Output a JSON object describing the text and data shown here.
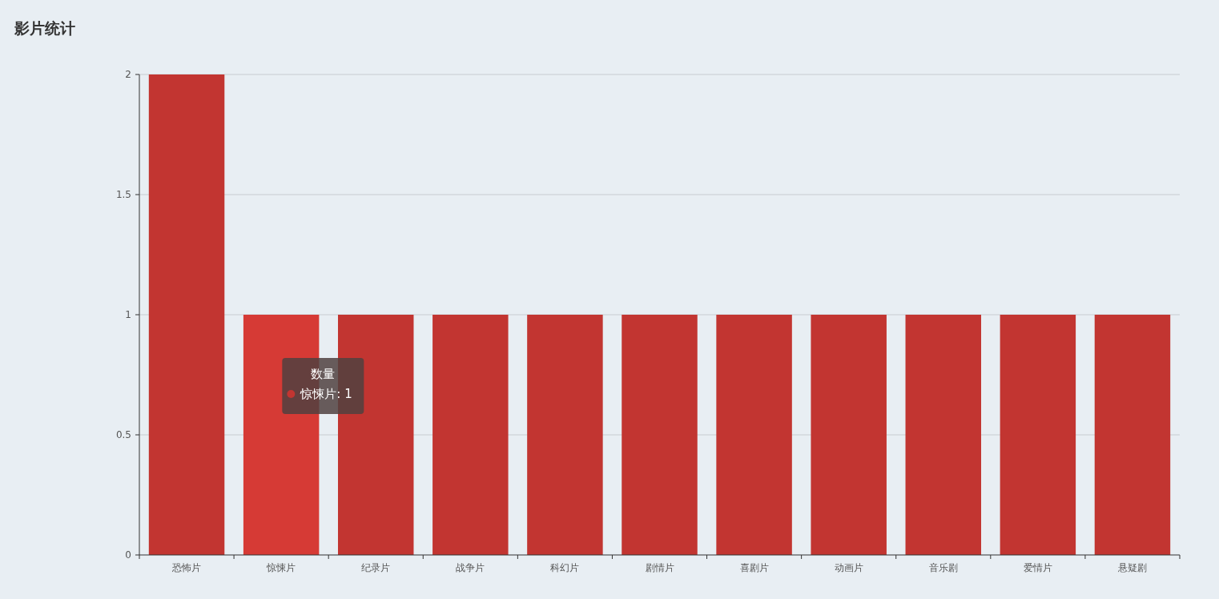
{
  "chart_data": {
    "type": "bar",
    "title": "影片统计",
    "categories": [
      "恐怖片",
      "惊悚片",
      "纪录片",
      "战争片",
      "科幻片",
      "剧情片",
      "喜剧片",
      "动画片",
      "音乐剧",
      "爱情片",
      "悬疑剧"
    ],
    "values": [
      2,
      1,
      1,
      1,
      1,
      1,
      1,
      1,
      1,
      1,
      1
    ],
    "colors": [
      "#c23531",
      "#d63a35",
      "#c23531",
      "#c23531",
      "#c23531",
      "#c23531",
      "#c23531",
      "#c23531",
      "#c23531",
      "#c23531",
      "#c23531"
    ],
    "ylim": [
      0,
      2
    ],
    "yticks": [
      0,
      0.5,
      1,
      {
        "value": 1.5,
        "label": "1.5"
      },
      2
    ],
    "grid": "y",
    "annotations": [
      "数量",
      "惊悚片: 1"
    ]
  }
}
